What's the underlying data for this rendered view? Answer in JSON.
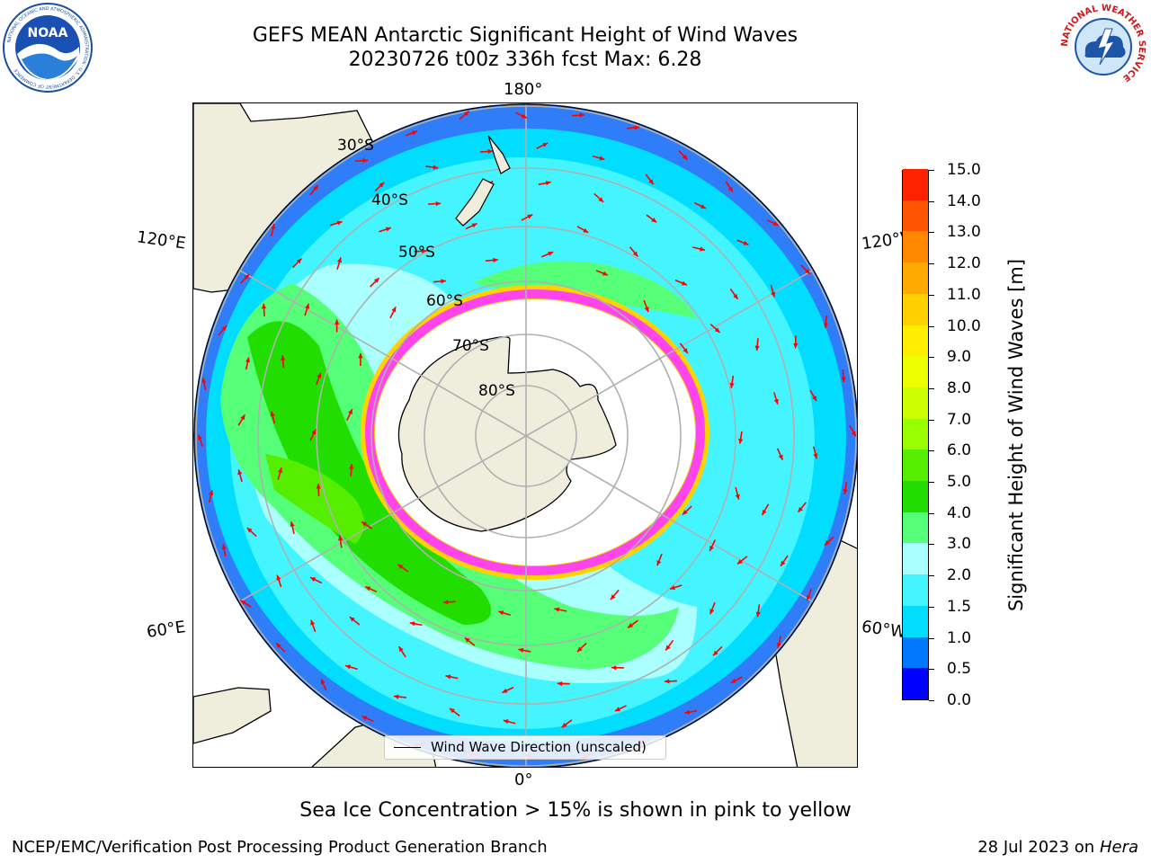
{
  "title_line1": "GEFS MEAN Antarctic Significant Height of Wind Waves",
  "title_line2": "20230726 t00z 336h fcst   Max: 6.28",
  "logos": {
    "noaa_text": "NOAA",
    "noaa_ring": "NATIONAL OCEANIC AND ATMOSPHERIC ADMINISTRATION · U.S. DEPARTMENT OF COMMERCE",
    "nws_ring": "NATIONAL WEATHER SERVICE"
  },
  "map": {
    "longitude_labels": {
      "top": "180°",
      "bottom": "0°",
      "upper_left": "120°E",
      "upper_right": "120°W",
      "lower_left": "60°E",
      "lower_right": "60°W"
    },
    "latitude_labels": [
      "30°S",
      "40°S",
      "50°S",
      "60°S",
      "70°S",
      "80°S"
    ],
    "legend_label": "Wind Wave Direction (unscaled)",
    "colors": {
      "land": "#efeddb",
      "ice_edge_pink": "#ff44ee",
      "ice_edge_yellow": "#ffd200",
      "grid": "#b0b0b0",
      "arrow": "#ff0000"
    }
  },
  "colorbar": {
    "title": "Significant Height of Wind Waves [m]",
    "ticks": [
      "0.0",
      "0.5",
      "1.0",
      "1.5",
      "2.0",
      "3.0",
      "4.0",
      "5.0",
      "6.0",
      "7.0",
      "8.0",
      "9.0",
      "10.0",
      "11.0",
      "12.0",
      "13.0",
      "14.0",
      "15.0"
    ],
    "colors": [
      "#0000ff",
      "#0077ff",
      "#00ddff",
      "#44f5ff",
      "#aaffff",
      "#55ff77",
      "#22dd00",
      "#55ee00",
      "#99ff00",
      "#ccff00",
      "#eeff00",
      "#ffee00",
      "#ffd000",
      "#ffaa00",
      "#ff8800",
      "#ff5500",
      "#ff2200"
    ]
  },
  "note": "Sea Ice Concentration > 15% is shown in pink to yellow",
  "footer_left": "NCEP/EMC/Verification Post Processing Product Generation Branch",
  "footer_right_prefix": "28 Jul 2023 on ",
  "footer_right_host": "Hera"
}
